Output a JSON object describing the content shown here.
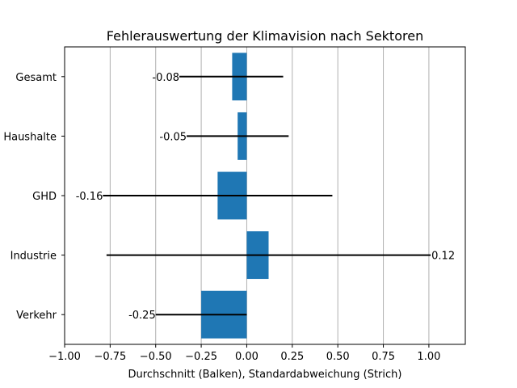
{
  "chart_data": {
    "type": "bar",
    "orientation": "horizontal",
    "title": "Fehlerauswertung der Klimavision nach Sektoren",
    "xlabel": "Durchschnitt (Balken), Standardabweichung (Strich)",
    "ylabel": "",
    "xlim": [
      -1.0,
      1.2
    ],
    "x_ticks": [
      -1.0,
      -0.75,
      -0.5,
      -0.25,
      0.0,
      0.25,
      0.5,
      0.75,
      1.0
    ],
    "x_tick_labels": [
      "−1.00",
      "−0.75",
      "−0.50",
      "−0.25",
      "0.00",
      "0.25",
      "0.50",
      "0.75",
      "1.00"
    ],
    "grid": "vertical",
    "categories": [
      "Gesamt",
      "Haushalte",
      "GHD",
      "Industrie",
      "Verkehr"
    ],
    "values": [
      -0.08,
      -0.05,
      -0.16,
      0.12,
      -0.25
    ],
    "value_labels": [
      "-0.08",
      "-0.05",
      "-0.16",
      "0.12",
      "-0.25"
    ],
    "error_ranges": [
      [
        -0.37,
        0.2
      ],
      [
        -0.33,
        0.23
      ],
      [
        -0.79,
        0.47
      ],
      [
        -0.77,
        1.01
      ],
      [
        -0.5,
        0.0
      ]
    ],
    "bar_color": "#1f77b4",
    "error_color": "#000000"
  }
}
